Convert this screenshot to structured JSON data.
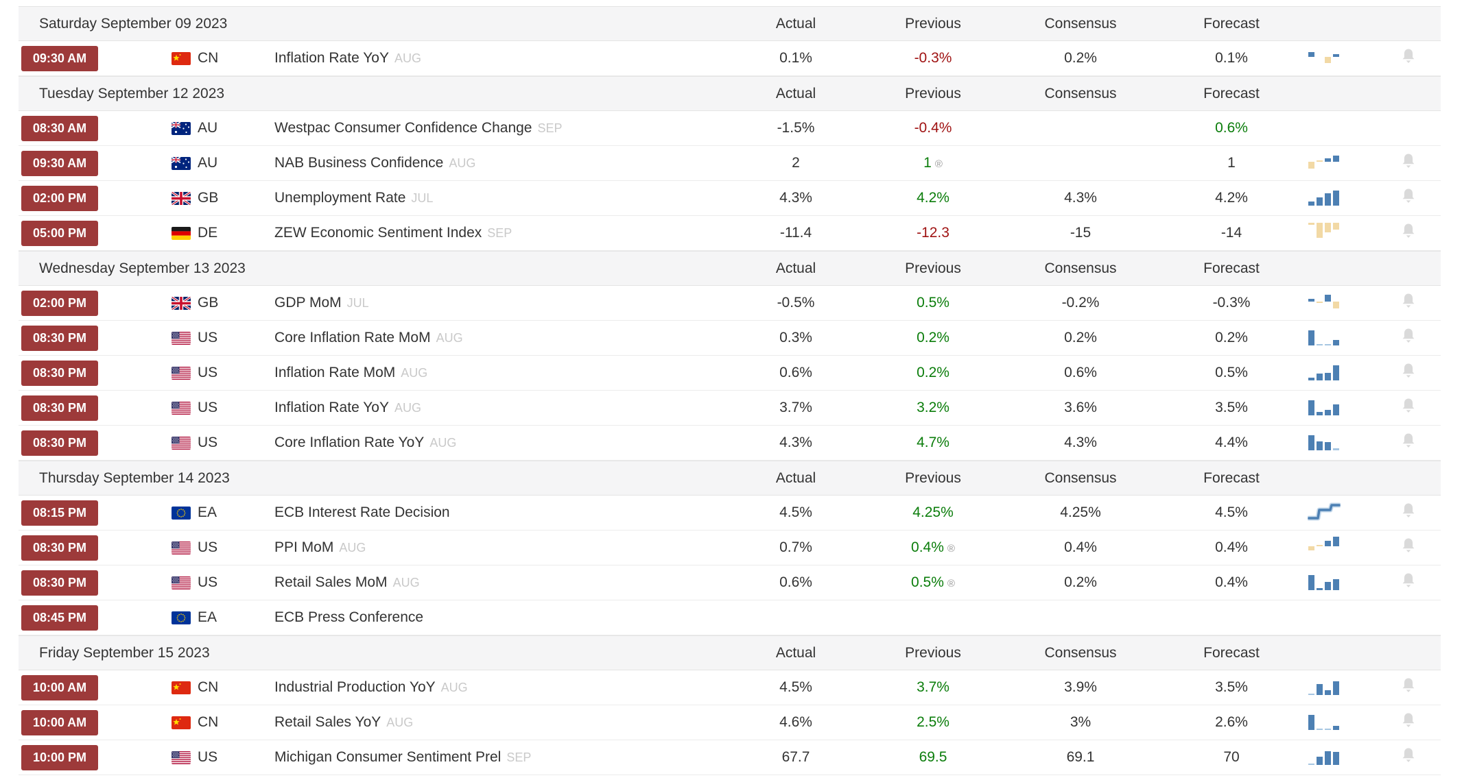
{
  "columns": {
    "actual": "Actual",
    "previous": "Previous",
    "consensus": "Consensus",
    "forecast": "Forecast"
  },
  "colors": {
    "badge_bg": "#9d3a3a",
    "negative": "#9f1212",
    "positive": "#0b7d0b",
    "chart_blue": "#4d80b3",
    "chart_blue_light": "#a6c6e2",
    "chart_tan": "#f2d9a5",
    "bell_gray": "#dadada",
    "day_header_bg": "#f5f5f6",
    "row_border": "#ececec",
    "text": "#333333",
    "month_tag": "#c9c9c9"
  },
  "days": [
    {
      "date": "Saturday September 09 2023",
      "events": [
        {
          "time": "09:30 AM",
          "country": "CN",
          "event": "Inflation Rate YoY",
          "month": "AUG",
          "actual": "0.1%",
          "previous": {
            "value": "-0.3%",
            "color": "negative",
            "revised": false
          },
          "consensus": "0.2%",
          "forecast": {
            "value": "0.1%",
            "color": "normal"
          },
          "chart": {
            "type": "bars",
            "baseline": "mid",
            "bars": [
              {
                "v": 7,
                "c": "b"
              },
              {
                "v": 0,
                "c": "b"
              },
              {
                "v": -9,
                "c": "t"
              },
              {
                "v": 4,
                "c": "b"
              }
            ]
          },
          "bell": true
        }
      ]
    },
    {
      "date": "Tuesday September 12 2023",
      "events": [
        {
          "time": "08:30 AM",
          "country": "AU",
          "event": "Westpac Consumer Confidence Change",
          "month": "SEP",
          "actual": "-1.5%",
          "previous": {
            "value": "-0.4%",
            "color": "negative",
            "revised": false
          },
          "consensus": "",
          "forecast": {
            "value": "0.6%",
            "color": "positive"
          },
          "chart": null,
          "bell": false
        },
        {
          "time": "09:30 AM",
          "country": "AU",
          "event": "NAB Business Confidence",
          "month": "AUG",
          "actual": "2",
          "previous": {
            "value": "1",
            "color": "positive",
            "revised": true
          },
          "consensus": "",
          "forecast": {
            "value": "1",
            "color": "normal"
          },
          "chart": {
            "type": "bars",
            "baseline": "mid",
            "bars": [
              {
                "v": -10,
                "c": "t"
              },
              {
                "v": 2,
                "c": "t"
              },
              {
                "v": 5,
                "c": "b"
              },
              {
                "v": 9,
                "c": "b"
              }
            ]
          },
          "bell": true
        },
        {
          "time": "02:00 PM",
          "country": "GB",
          "event": "Unemployment Rate",
          "month": "JUL",
          "actual": "4.3%",
          "previous": {
            "value": "4.2%",
            "color": "positive",
            "revised": false
          },
          "consensus": "4.3%",
          "forecast": {
            "value": "4.2%",
            "color": "normal"
          },
          "chart": {
            "type": "bars",
            "baseline": "bottom",
            "bars": [
              {
                "v": 6,
                "c": "b"
              },
              {
                "v": 12,
                "c": "b"
              },
              {
                "v": 18,
                "c": "b"
              },
              {
                "v": 22,
                "c": "b"
              }
            ]
          },
          "bell": true
        },
        {
          "time": "05:00 PM",
          "country": "DE",
          "event": "ZEW Economic Sentiment Index",
          "month": "SEP",
          "actual": "-11.4",
          "previous": {
            "value": "-12.3",
            "color": "negative",
            "revised": false
          },
          "consensus": "-15",
          "forecast": {
            "value": "-14",
            "color": "normal"
          },
          "chart": {
            "type": "bars",
            "baseline": "top",
            "bars": [
              {
                "v": -3,
                "c": "t"
              },
              {
                "v": -22,
                "c": "t"
              },
              {
                "v": -14,
                "c": "t"
              },
              {
                "v": -10,
                "c": "t"
              }
            ]
          },
          "bell": true
        }
      ]
    },
    {
      "date": "Wednesday September 13 2023",
      "events": [
        {
          "time": "02:00 PM",
          "country": "GB",
          "event": "GDP MoM",
          "month": "JUL",
          "actual": "-0.5%",
          "previous": {
            "value": "0.5%",
            "color": "positive",
            "revised": false
          },
          "consensus": "-0.2%",
          "forecast": {
            "value": "-0.3%",
            "color": "normal"
          },
          "chart": {
            "type": "bars",
            "baseline": "mid",
            "bars": [
              {
                "v": 4,
                "c": "b"
              },
              {
                "v": -2,
                "c": "t"
              },
              {
                "v": 10,
                "c": "b"
              },
              {
                "v": -10,
                "c": "t"
              }
            ]
          },
          "bell": true
        },
        {
          "time": "08:30 PM",
          "country": "US",
          "event": "Core Inflation Rate MoM",
          "month": "AUG",
          "actual": "0.3%",
          "previous": {
            "value": "0.2%",
            "color": "positive",
            "revised": false
          },
          "consensus": "0.2%",
          "forecast": {
            "value": "0.2%",
            "color": "normal"
          },
          "chart": {
            "type": "bars",
            "baseline": "bottom",
            "bars": [
              {
                "v": 22,
                "c": "b"
              },
              {
                "v": 2,
                "c": "lb"
              },
              {
                "v": 2,
                "c": "lb"
              },
              {
                "v": 8,
                "c": "b"
              }
            ]
          },
          "bell": true
        },
        {
          "time": "08:30 PM",
          "country": "US",
          "event": "Inflation Rate MoM",
          "month": "AUG",
          "actual": "0.6%",
          "previous": {
            "value": "0.2%",
            "color": "positive",
            "revised": false
          },
          "consensus": "0.6%",
          "forecast": {
            "value": "0.5%",
            "color": "normal"
          },
          "chart": {
            "type": "bars",
            "baseline": "bottom",
            "bars": [
              {
                "v": 4,
                "c": "b"
              },
              {
                "v": 10,
                "c": "b"
              },
              {
                "v": 11,
                "c": "b"
              },
              {
                "v": 22,
                "c": "b"
              }
            ]
          },
          "bell": true
        },
        {
          "time": "08:30 PM",
          "country": "US",
          "event": "Inflation Rate YoY",
          "month": "AUG",
          "actual": "3.7%",
          "previous": {
            "value": "3.2%",
            "color": "positive",
            "revised": false
          },
          "consensus": "3.6%",
          "forecast": {
            "value": "3.5%",
            "color": "normal"
          },
          "chart": {
            "type": "bars",
            "baseline": "bottom",
            "bars": [
              {
                "v": 22,
                "c": "b"
              },
              {
                "v": 5,
                "c": "b"
              },
              {
                "v": 8,
                "c": "b"
              },
              {
                "v": 16,
                "c": "b"
              }
            ]
          },
          "bell": true
        },
        {
          "time": "08:30 PM",
          "country": "US",
          "event": "Core Inflation Rate YoY",
          "month": "AUG",
          "actual": "4.3%",
          "previous": {
            "value": "4.7%",
            "color": "positive",
            "revised": false
          },
          "consensus": "4.3%",
          "forecast": {
            "value": "4.4%",
            "color": "normal"
          },
          "chart": {
            "type": "bars",
            "baseline": "bottom",
            "bars": [
              {
                "v": 22,
                "c": "b"
              },
              {
                "v": 13,
                "c": "b"
              },
              {
                "v": 12,
                "c": "b"
              },
              {
                "v": 3,
                "c": "lb"
              }
            ]
          },
          "bell": true
        }
      ]
    },
    {
      "date": "Thursday September 14 2023",
      "events": [
        {
          "time": "08:15 PM",
          "country": "EA",
          "event": "ECB Interest Rate Decision",
          "month": "",
          "actual": "4.5%",
          "previous": {
            "value": "4.25%",
            "color": "positive",
            "revised": false
          },
          "consensus": "4.25%",
          "forecast": {
            "value": "4.5%",
            "color": "normal"
          },
          "chart": {
            "type": "step"
          },
          "bell": true
        },
        {
          "time": "08:30 PM",
          "country": "US",
          "event": "PPI MoM",
          "month": "AUG",
          "actual": "0.7%",
          "previous": {
            "value": "0.4%",
            "color": "positive",
            "revised": true
          },
          "consensus": "0.4%",
          "forecast": {
            "value": "0.4%",
            "color": "normal"
          },
          "chart": {
            "type": "bars",
            "baseline": "mid",
            "bars": [
              {
                "v": -6,
                "c": "t"
              },
              {
                "v": 2,
                "c": "t"
              },
              {
                "v": 8,
                "c": "b"
              },
              {
                "v": 14,
                "c": "b"
              }
            ]
          },
          "bell": true
        },
        {
          "time": "08:30 PM",
          "country": "US",
          "event": "Retail Sales MoM",
          "month": "AUG",
          "actual": "0.6%",
          "previous": {
            "value": "0.5%",
            "color": "positive",
            "revised": true
          },
          "consensus": "0.2%",
          "forecast": {
            "value": "0.4%",
            "color": "normal"
          },
          "chart": {
            "type": "bars",
            "baseline": "bottom",
            "bars": [
              {
                "v": 22,
                "c": "b"
              },
              {
                "v": 3,
                "c": "b"
              },
              {
                "v": 12,
                "c": "b"
              },
              {
                "v": 16,
                "c": "b"
              }
            ]
          },
          "bell": true
        },
        {
          "time": "08:45 PM",
          "country": "EA",
          "event": "ECB Press Conference",
          "month": "",
          "actual": "",
          "previous": {
            "value": "",
            "color": "normal",
            "revised": false
          },
          "consensus": "",
          "forecast": {
            "value": "",
            "color": "normal"
          },
          "chart": null,
          "bell": false
        }
      ]
    },
    {
      "date": "Friday September 15 2023",
      "events": [
        {
          "time": "10:00 AM",
          "country": "CN",
          "event": "Industrial Production YoY",
          "month": "AUG",
          "actual": "4.5%",
          "previous": {
            "value": "3.7%",
            "color": "positive",
            "revised": false
          },
          "consensus": "3.9%",
          "forecast": {
            "value": "3.5%",
            "color": "normal"
          },
          "chart": {
            "type": "bars",
            "baseline": "bottom",
            "bars": [
              {
                "v": 2,
                "c": "lb"
              },
              {
                "v": 16,
                "c": "b"
              },
              {
                "v": 7,
                "c": "b"
              },
              {
                "v": 20,
                "c": "b"
              }
            ]
          },
          "bell": true
        },
        {
          "time": "10:00 AM",
          "country": "CN",
          "event": "Retail Sales YoY",
          "month": "AUG",
          "actual": "4.6%",
          "previous": {
            "value": "2.5%",
            "color": "positive",
            "revised": false
          },
          "consensus": "3%",
          "forecast": {
            "value": "2.6%",
            "color": "normal"
          },
          "chart": {
            "type": "bars",
            "baseline": "bottom",
            "bars": [
              {
                "v": 22,
                "c": "b"
              },
              {
                "v": 2,
                "c": "lb"
              },
              {
                "v": 2,
                "c": "lb"
              },
              {
                "v": 6,
                "c": "b"
              }
            ]
          },
          "bell": true
        },
        {
          "time": "10:00 PM",
          "country": "US",
          "event": "Michigan Consumer Sentiment Prel",
          "month": "SEP",
          "actual": "67.7",
          "previous": {
            "value": "69.5",
            "color": "positive",
            "revised": false
          },
          "consensus": "69.1",
          "forecast": {
            "value": "70",
            "color": "normal"
          },
          "chart": {
            "type": "bars",
            "baseline": "bottom",
            "bars": [
              {
                "v": 2,
                "c": "lb"
              },
              {
                "v": 12,
                "c": "b"
              },
              {
                "v": 20,
                "c": "b"
              },
              {
                "v": 19,
                "c": "b"
              }
            ]
          },
          "bell": true
        }
      ]
    }
  ]
}
